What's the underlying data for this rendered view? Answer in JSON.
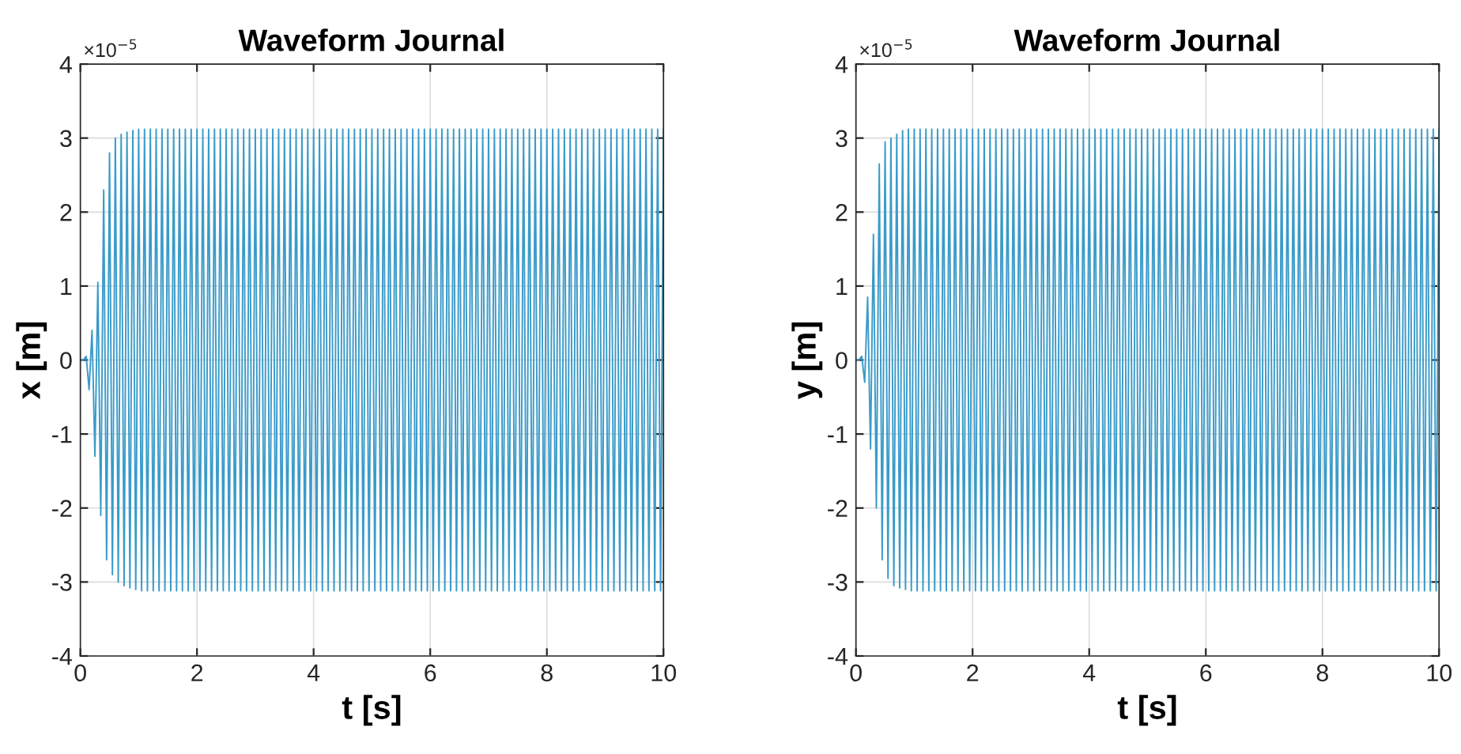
{
  "chart_data": [
    {
      "type": "line",
      "title": "Waveform Journal",
      "xlabel": "t [s]",
      "ylabel": "x [m]",
      "annotations": [
        "×10$^{−5}$"
      ],
      "xlim": [
        0,
        10
      ],
      "ylim": [
        -4,
        4
      ],
      "xticks": [
        0,
        2,
        4,
        6,
        8,
        10
      ],
      "yticks": [
        -4,
        -3,
        -2,
        -1,
        0,
        1,
        2,
        3,
        4
      ],
      "grid": true,
      "legend": false,
      "marker": "none",
      "line_style": "solid",
      "series": [
        {
          "color": "#3a9bc9",
          "x": [
            0,
            0.05,
            0.1,
            0.15,
            0.2,
            0.25,
            0.3,
            0.35,
            0.4,
            0.45,
            0.5,
            0.55,
            0.6,
            0.65,
            0.7,
            0.75,
            0.8,
            0.85,
            0.9,
            0.95,
            1,
            1.05,
            1.1,
            1.15,
            1.2,
            1.25,
            1.3,
            1.35,
            1.4,
            1.45,
            1.5,
            1.55,
            1.6,
            1.65,
            1.7,
            1.75,
            1.8,
            1.85,
            1.9,
            1.95,
            2,
            2.05,
            2.1,
            2.15,
            2.2,
            2.25,
            2.3,
            2.35,
            2.4,
            2.45,
            2.5,
            2.55,
            2.6,
            2.65,
            2.7,
            2.75,
            2.8,
            2.85,
            2.9,
            2.95,
            3,
            3.05,
            3.1,
            3.15,
            3.2,
            3.25,
            3.3,
            3.35,
            3.4,
            3.45,
            3.5,
            3.55,
            3.6,
            3.65,
            3.7,
            3.75,
            3.8,
            3.85,
            3.9,
            3.95,
            4,
            4.05,
            4.1,
            4.15,
            4.2,
            4.25,
            4.3,
            4.35,
            4.4,
            4.45,
            4.5,
            4.55,
            4.6,
            4.65,
            4.7,
            4.75,
            4.8,
            4.85,
            4.9,
            4.95,
            5,
            5.05,
            5.1,
            5.15,
            5.2,
            5.25,
            5.3,
            5.35,
            5.4,
            5.45,
            5.5,
            5.55,
            5.6,
            5.65,
            5.7,
            5.75,
            5.8,
            5.85,
            5.9,
            5.95,
            6,
            6.05,
            6.1,
            6.15,
            6.2,
            6.25,
            6.3,
            6.35,
            6.4,
            6.45,
            6.5,
            6.55,
            6.6,
            6.65,
            6.7,
            6.75,
            6.8,
            6.85,
            6.9,
            6.95,
            7,
            7.05,
            7.1,
            7.15,
            7.2,
            7.25,
            7.3,
            7.35,
            7.4,
            7.45,
            7.5,
            7.55,
            7.6,
            7.65,
            7.7,
            7.75,
            7.8,
            7.85,
            7.9,
            7.95,
            8,
            8.05,
            8.1,
            8.15,
            8.2,
            8.25,
            8.3,
            8.35,
            8.4,
            8.45,
            8.5,
            8.55,
            8.6,
            8.65,
            8.7,
            8.75,
            8.8,
            8.85,
            8.9,
            8.95,
            9,
            9.05,
            9.1,
            9.15,
            9.2,
            9.25,
            9.3,
            9.35,
            9.4,
            9.45,
            9.5,
            9.55,
            9.6,
            9.65,
            9.7,
            9.75,
            9.8,
            9.85,
            9.9,
            9.95,
            10
          ],
          "values": [
            0,
            0,
            0.05,
            -0.4,
            0.4,
            -1.3,
            1.05,
            -2.1,
            2.3,
            -2.7,
            2.8,
            -2.9,
            3.0,
            -3.0,
            3.05,
            -3.05,
            3.08,
            -3.08,
            3.1,
            -3.1,
            3.12,
            -3.12,
            3.12,
            -3.12,
            3.12,
            -3.12,
            3.12,
            -3.12,
            3.12,
            -3.12,
            3.12,
            -3.12,
            3.12,
            -3.12,
            3.12,
            -3.12,
            3.12,
            -3.12,
            3.12,
            -3.12,
            3.12,
            -3.12,
            3.12,
            -3.12,
            3.12,
            -3.12,
            3.12,
            -3.12,
            3.12,
            -3.12,
            3.12,
            -3.12,
            3.12,
            -3.12,
            3.12,
            -3.12,
            3.12,
            -3.12,
            3.12,
            -3.12,
            3.12,
            -3.12,
            3.12,
            -3.12,
            3.12,
            -3.12,
            3.12,
            -3.12,
            3.12,
            -3.12,
            3.12,
            -3.12,
            3.12,
            -3.12,
            3.12,
            -3.12,
            3.12,
            -3.12,
            3.12,
            -3.12,
            3.12,
            -3.12,
            3.12,
            -3.12,
            3.12,
            -3.12,
            3.12,
            -3.12,
            3.12,
            -3.12,
            3.12,
            -3.12,
            3.12,
            -3.12,
            3.12,
            -3.12,
            3.12,
            -3.12,
            3.12,
            -3.12,
            3.12,
            -3.12,
            3.12,
            -3.12,
            3.12,
            -3.12,
            3.12,
            -3.12,
            3.12,
            -3.12,
            3.12,
            -3.12,
            3.12,
            -3.12,
            3.12,
            -3.12,
            3.12,
            -3.12,
            3.12,
            -3.12,
            3.12,
            -3.12,
            3.12,
            -3.12,
            3.12,
            -3.12,
            3.12,
            -3.12,
            3.12,
            -3.12,
            3.12,
            -3.12,
            3.12,
            -3.12,
            3.12,
            -3.12,
            3.12,
            -3.12,
            3.12,
            -3.12,
            3.12,
            -3.12,
            3.12,
            -3.12,
            3.12,
            -3.12,
            3.12,
            -3.12,
            3.12,
            -3.12,
            3.12,
            -3.12,
            3.12,
            -3.12,
            3.12,
            -3.12,
            3.12,
            -3.12,
            3.12,
            -3.12,
            3.12,
            -3.12,
            3.12,
            -3.12,
            3.12,
            -3.12,
            3.12,
            -3.12,
            3.12,
            -3.12,
            3.12,
            -3.12,
            3.12,
            -3.12,
            3.12,
            -3.12,
            3.12,
            -3.12,
            3.12,
            -3.12,
            3.12,
            -3.12,
            3.12,
            -3.12,
            3.12,
            -3.12,
            3.12,
            -3.12,
            3.12,
            -3.12,
            3.12,
            -3.12,
            3.12,
            -3.12,
            3.12,
            -3.12,
            3.12,
            -3.12,
            3.12,
            -3.12,
            3.12
          ]
        }
      ]
    },
    {
      "type": "line",
      "title": "Waveform Journal",
      "xlabel": "t [s]",
      "ylabel": "y [m]",
      "annotations": [
        "×10$^{−5}$"
      ],
      "xlim": [
        0,
        10
      ],
      "ylim": [
        -4,
        4
      ],
      "xticks": [
        0,
        2,
        4,
        6,
        8,
        10
      ],
      "yticks": [
        -4,
        -3,
        -2,
        -1,
        0,
        1,
        2,
        3,
        4
      ],
      "grid": true,
      "legend": false,
      "marker": "none",
      "line_style": "solid",
      "series": [
        {
          "color": "#3a9bc9",
          "x": [
            0,
            0.05,
            0.1,
            0.15,
            0.2,
            0.25,
            0.3,
            0.35,
            0.4,
            0.45,
            0.5,
            0.55,
            0.6,
            0.65,
            0.7,
            0.75,
            0.8,
            0.85,
            0.9,
            0.95,
            1,
            1.05,
            1.1,
            1.15,
            1.2,
            1.25,
            1.3,
            1.35,
            1.4,
            1.45,
            1.5,
            1.55,
            1.6,
            1.65,
            1.7,
            1.75,
            1.8,
            1.85,
            1.9,
            1.95,
            2,
            2.05,
            2.1,
            2.15,
            2.2,
            2.25,
            2.3,
            2.35,
            2.4,
            2.45,
            2.5,
            2.55,
            2.6,
            2.65,
            2.7,
            2.75,
            2.8,
            2.85,
            2.9,
            2.95,
            3,
            3.05,
            3.1,
            3.15,
            3.2,
            3.25,
            3.3,
            3.35,
            3.4,
            3.45,
            3.5,
            3.55,
            3.6,
            3.65,
            3.7,
            3.75,
            3.8,
            3.85,
            3.9,
            3.95,
            4,
            4.05,
            4.1,
            4.15,
            4.2,
            4.25,
            4.3,
            4.35,
            4.4,
            4.45,
            4.5,
            4.55,
            4.6,
            4.65,
            4.7,
            4.75,
            4.8,
            4.85,
            4.9,
            4.95,
            5,
            5.05,
            5.1,
            5.15,
            5.2,
            5.25,
            5.3,
            5.35,
            5.4,
            5.45,
            5.5,
            5.55,
            5.6,
            5.65,
            5.7,
            5.75,
            5.8,
            5.85,
            5.9,
            5.95,
            6,
            6.05,
            6.1,
            6.15,
            6.2,
            6.25,
            6.3,
            6.35,
            6.4,
            6.45,
            6.5,
            6.55,
            6.6,
            6.65,
            6.7,
            6.75,
            6.8,
            6.85,
            6.9,
            6.95,
            7,
            7.05,
            7.1,
            7.15,
            7.2,
            7.25,
            7.3,
            7.35,
            7.4,
            7.45,
            7.5,
            7.55,
            7.6,
            7.65,
            7.7,
            7.75,
            7.8,
            7.85,
            7.9,
            7.95,
            8,
            8.05,
            8.1,
            8.15,
            8.2,
            8.25,
            8.3,
            8.35,
            8.4,
            8.45,
            8.5,
            8.55,
            8.6,
            8.65,
            8.7,
            8.75,
            8.8,
            8.85,
            8.9,
            8.95,
            9,
            9.05,
            9.1,
            9.15,
            9.2,
            9.25,
            9.3,
            9.35,
            9.4,
            9.45,
            9.5,
            9.55,
            9.6,
            9.65,
            9.7,
            9.75,
            9.8,
            9.85,
            9.9,
            9.95,
            10
          ],
          "values": [
            0,
            0,
            0.05,
            -0.3,
            0.85,
            -1.2,
            1.7,
            -2.0,
            2.65,
            -2.7,
            2.95,
            -2.95,
            3.0,
            -3.05,
            3.05,
            -3.08,
            3.1,
            -3.1,
            3.12,
            -3.12,
            3.12,
            -3.12,
            3.12,
            -3.12,
            3.12,
            -3.12,
            3.12,
            -3.12,
            3.12,
            -3.12,
            3.12,
            -3.12,
            3.12,
            -3.12,
            3.12,
            -3.12,
            3.12,
            -3.12,
            3.12,
            -3.12,
            3.12,
            -3.12,
            3.12,
            -3.12,
            3.12,
            -3.12,
            3.12,
            -3.12,
            3.12,
            -3.12,
            3.12,
            -3.12,
            3.12,
            -3.12,
            3.12,
            -3.12,
            3.12,
            -3.12,
            3.12,
            -3.12,
            3.12,
            -3.12,
            3.12,
            -3.12,
            3.12,
            -3.12,
            3.12,
            -3.12,
            3.12,
            -3.12,
            3.12,
            -3.12,
            3.12,
            -3.12,
            3.12,
            -3.12,
            3.12,
            -3.12,
            3.12,
            -3.12,
            3.12,
            -3.12,
            3.12,
            -3.12,
            3.12,
            -3.12,
            3.12,
            -3.12,
            3.12,
            -3.12,
            3.12,
            -3.12,
            3.12,
            -3.12,
            3.12,
            -3.12,
            3.12,
            -3.12,
            3.12,
            -3.12,
            3.12,
            -3.12,
            3.12,
            -3.12,
            3.12,
            -3.12,
            3.12,
            -3.12,
            3.12,
            -3.12,
            3.12,
            -3.12,
            3.12,
            -3.12,
            3.12,
            -3.12,
            3.12,
            -3.12,
            3.12,
            -3.12,
            3.12,
            -3.12,
            3.12,
            -3.12,
            3.12,
            -3.12,
            3.12,
            -3.12,
            3.12,
            -3.12,
            3.12,
            -3.12,
            3.12,
            -3.12,
            3.12,
            -3.12,
            3.12,
            -3.12,
            3.12,
            -3.12,
            3.12,
            -3.12,
            3.12,
            -3.12,
            3.12,
            -3.12,
            3.12,
            -3.12,
            3.12,
            -3.12,
            3.12,
            -3.12,
            3.12,
            -3.12,
            3.12,
            -3.12,
            3.12,
            -3.12,
            3.12,
            -3.12,
            3.12,
            -3.12,
            3.12,
            -3.12,
            3.12,
            -3.12,
            3.12,
            -3.12,
            3.12,
            -3.12,
            3.12,
            -3.12,
            3.12,
            -3.12,
            3.12,
            -3.12,
            3.12,
            -3.12,
            3.12,
            -3.12,
            3.12,
            -3.12,
            3.12,
            -3.12,
            3.12,
            -3.12,
            3.12,
            -3.12,
            3.12,
            -3.12,
            3.12,
            -3.12,
            3.12,
            -3.12,
            3.12,
            -3.12,
            3.12,
            -3.12,
            3.12,
            -3.12,
            3.12
          ]
        }
      ]
    }
  ]
}
